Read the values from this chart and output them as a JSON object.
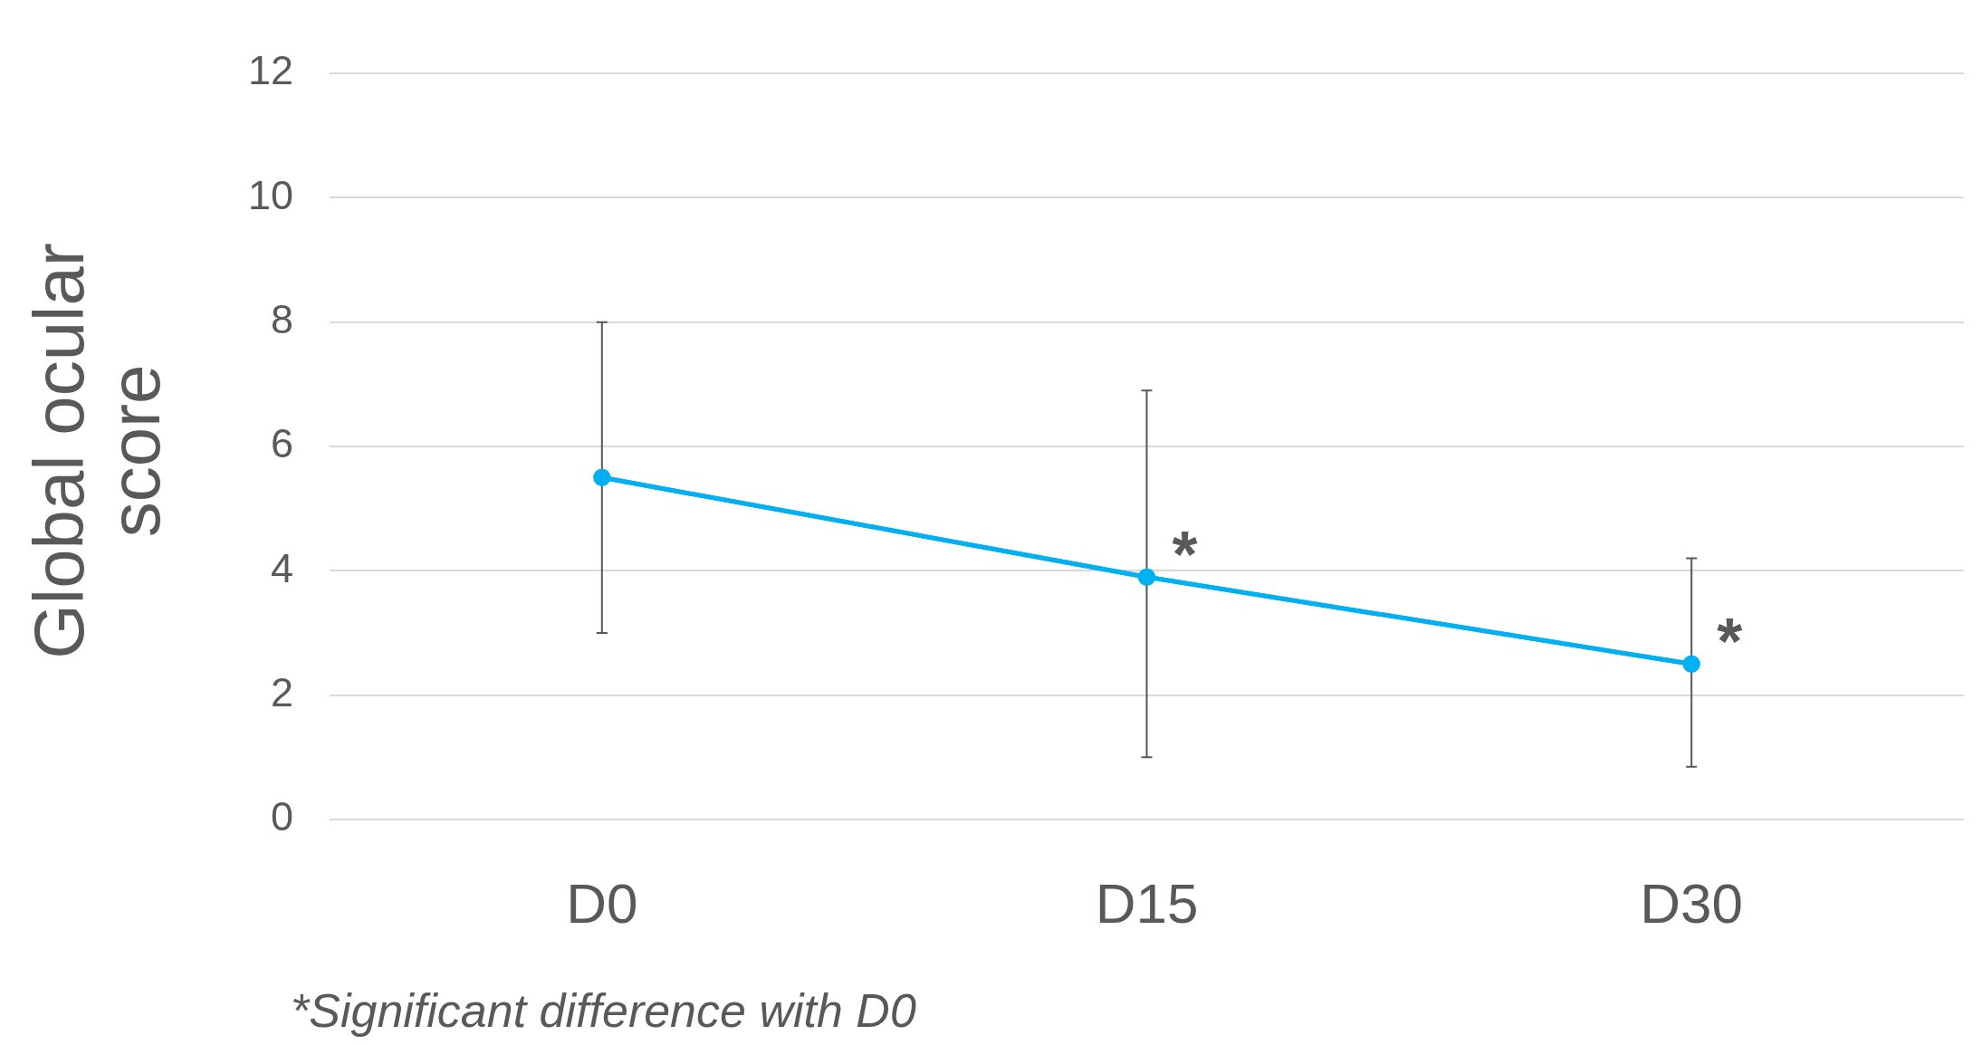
{
  "chart_data": {
    "type": "line",
    "ylabel": "Global ocular score",
    "categories": [
      "D0",
      "D15",
      "D30"
    ],
    "series": [
      {
        "color": "#00b0f0",
        "values": [
          5.5,
          3.9,
          2.5
        ],
        "errors": [
          [
            3,
            8
          ],
          [
            1,
            6.9
          ],
          [
            0.85,
            4.2
          ]
        ]
      }
    ],
    "ylim": [
      0,
      12
    ],
    "yticks": [
      0,
      2,
      4,
      6,
      8,
      10,
      12
    ],
    "grid": "y",
    "legend": false,
    "marker": "circle",
    "line_style": "solid",
    "annotations": [
      {
        "text": "*",
        "x": "D15",
        "y": 3.9
      },
      {
        "text": "*",
        "x": "D30",
        "y": 2.5
      },
      "*Significant difference with D0"
    ]
  }
}
